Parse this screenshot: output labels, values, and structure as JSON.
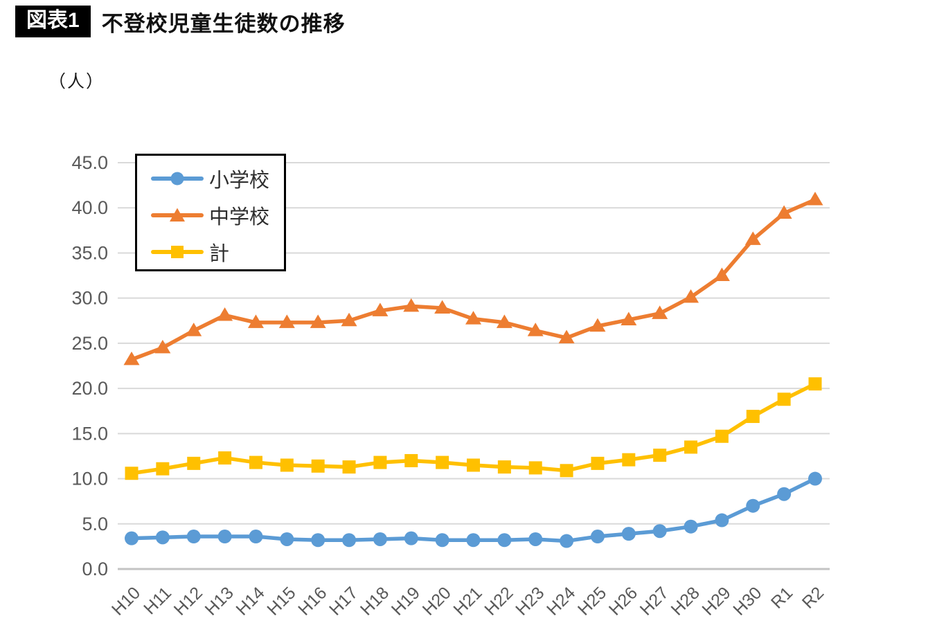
{
  "header": {
    "figure_tag": "図表1"
  },
  "chart_data": {
    "type": "line",
    "title": "不登校児童生徒数の推移",
    "ylabel": "（人）",
    "xlabel": "",
    "ylim": [
      0,
      45
    ],
    "ytick_step": 5,
    "ytick_decimals": 1,
    "grid": true,
    "legend_position": "top-left-inside",
    "categories": [
      "H10",
      "H11",
      "H12",
      "H13",
      "H14",
      "H15",
      "H16",
      "H17",
      "H18",
      "H19",
      "H20",
      "H21",
      "H22",
      "H23",
      "H24",
      "H25",
      "H26",
      "H27",
      "H28",
      "H29",
      "H30",
      "R1",
      "R2"
    ],
    "series": [
      {
        "key": "elementary",
        "name": "小学校",
        "color": "#5B9BD5",
        "marker": "circle",
        "values": [
          3.4,
          3.5,
          3.6,
          3.6,
          3.6,
          3.3,
          3.2,
          3.2,
          3.3,
          3.4,
          3.2,
          3.2,
          3.2,
          3.3,
          3.1,
          3.6,
          3.9,
          4.2,
          4.7,
          5.4,
          7.0,
          8.3,
          10.0
        ]
      },
      {
        "key": "junior-high",
        "name": "中学校",
        "color": "#ED7D31",
        "marker": "triangle",
        "values": [
          23.2,
          24.5,
          26.4,
          28.1,
          27.3,
          27.3,
          27.3,
          27.5,
          28.6,
          29.1,
          28.9,
          27.7,
          27.3,
          26.4,
          25.6,
          26.9,
          27.6,
          28.3,
          30.1,
          32.5,
          36.5,
          39.4,
          40.9
        ]
      },
      {
        "key": "total",
        "name": "計",
        "color": "#FFC000",
        "marker": "square",
        "values": [
          10.6,
          11.1,
          11.7,
          12.3,
          11.8,
          11.5,
          11.4,
          11.3,
          11.8,
          12.0,
          11.8,
          11.5,
          11.3,
          11.2,
          10.9,
          11.7,
          12.1,
          12.6,
          13.5,
          14.7,
          16.9,
          18.8,
          20.5
        ]
      }
    ],
    "colors": {
      "grid": "#d9d9d9",
      "baseline": "#c3c3c3",
      "tick_label": "#595959"
    }
  }
}
